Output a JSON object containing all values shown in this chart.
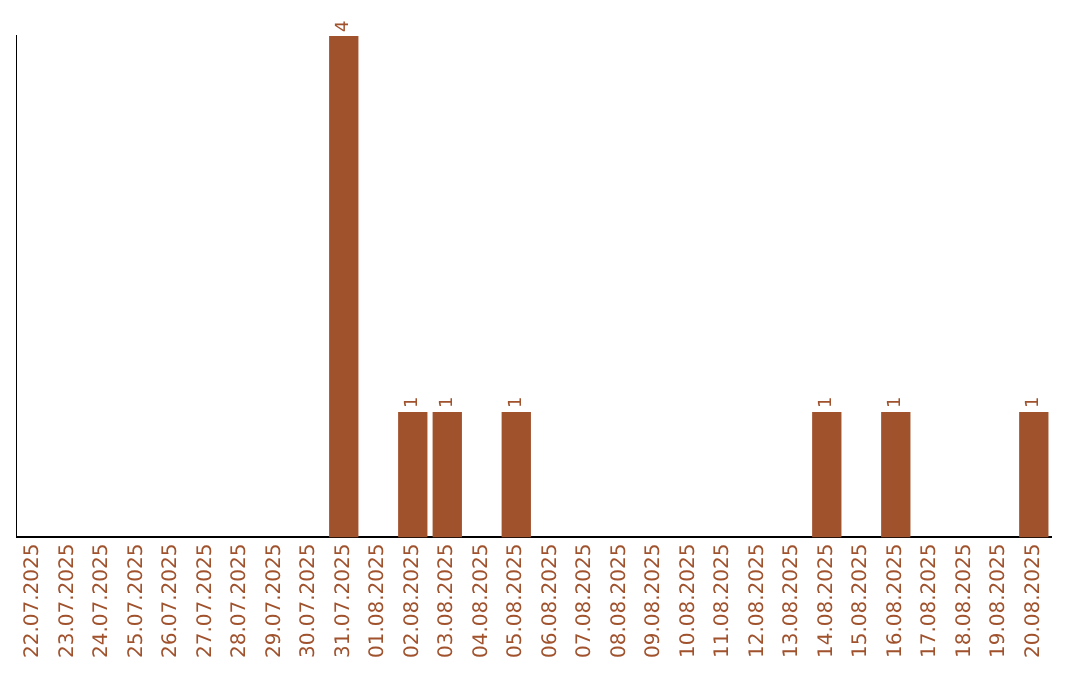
{
  "chart_data": {
    "type": "bar",
    "categories": [
      "22.07.2025",
      "23.07.2025",
      "24.07.2025",
      "25.07.2025",
      "26.07.2025",
      "27.07.2025",
      "28.07.2025",
      "29.07.2025",
      "30.07.2025",
      "31.07.2025",
      "01.08.2025",
      "02.08.2025",
      "03.08.2025",
      "04.08.2025",
      "05.08.2025",
      "06.08.2025",
      "07.08.2025",
      "08.08.2025",
      "09.08.2025",
      "10.08.2025",
      "11.08.2025",
      "12.08.2025",
      "13.08.2025",
      "14.08.2025",
      "15.08.2025",
      "16.08.2025",
      "17.08.2025",
      "18.08.2025",
      "19.08.2025",
      "20.08.2025"
    ],
    "values": [
      0,
      0,
      0,
      0,
      0,
      0,
      0,
      0,
      0,
      4,
      0,
      1,
      1,
      0,
      1,
      0,
      0,
      0,
      0,
      0,
      0,
      0,
      0,
      1,
      0,
      1,
      0,
      0,
      0,
      1
    ],
    "value_labels": [
      null,
      null,
      null,
      null,
      null,
      null,
      null,
      null,
      null,
      "4",
      null,
      "1",
      "1",
      null,
      "1",
      null,
      null,
      null,
      null,
      null,
      null,
      null,
      null,
      "1",
      null,
      "1",
      null,
      null,
      null,
      "1"
    ],
    "color": "#a0522d",
    "grid": false,
    "legend": false,
    "tick_labels": "x"
  }
}
